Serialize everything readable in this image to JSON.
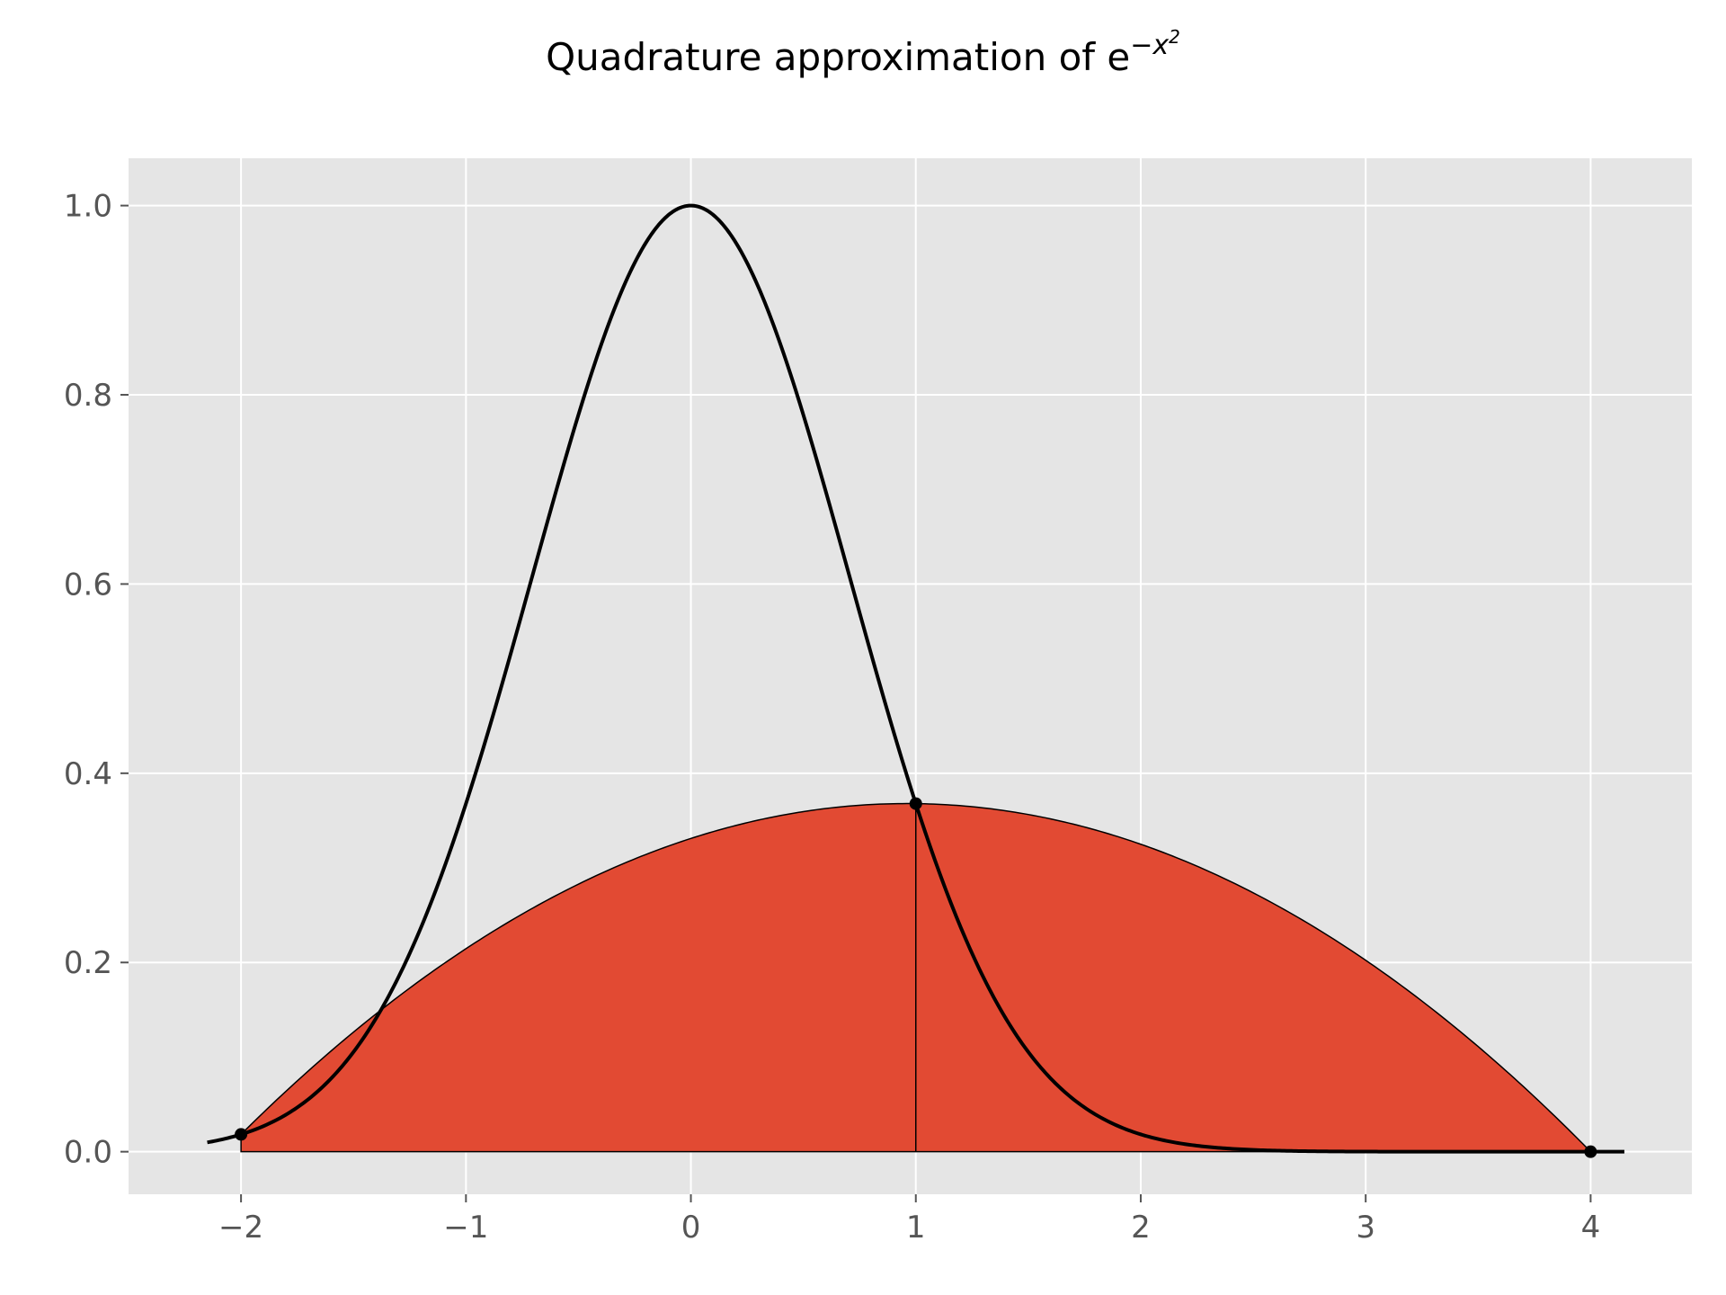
{
  "chart_data": {
    "type": "line",
    "title": "Quadrature approximation of e",
    "title_math_exponent": "−x",
    "title_math_power": "2",
    "xlabel": "",
    "ylabel": "",
    "xlim": [
      -2.5,
      4.45
    ],
    "ylim": [
      -0.045,
      1.05
    ],
    "x_ticks": [
      -2,
      -1,
      0,
      1,
      2,
      3,
      4
    ],
    "x_tick_labels": [
      "−2",
      "−1",
      "0",
      "1",
      "2",
      "3",
      "4"
    ],
    "y_ticks": [
      0.0,
      0.2,
      0.4,
      0.6,
      0.8,
      1.0
    ],
    "y_tick_labels": [
      "0.0",
      "0.2",
      "0.4",
      "0.6",
      "0.8",
      "1.0"
    ],
    "grid": true,
    "series": [
      {
        "function": "exp(-x^2)",
        "x_range": [
          -2.15,
          4.15
        ],
        "color": "#000000"
      }
    ],
    "nodes": {
      "x": [
        -2,
        1,
        4
      ],
      "y": [
        0.0183,
        0.3679,
        0.0
      ]
    },
    "interpolant": {
      "type": "quadratic through nodes",
      "fill_color": "#E24A33",
      "divider_x": 1
    },
    "colors": {
      "axes_background": "#E5E5E5",
      "grid": "#FFFFFF",
      "fill": "#E24A33",
      "curve": "#000000",
      "tick_text": "#555555"
    }
  }
}
